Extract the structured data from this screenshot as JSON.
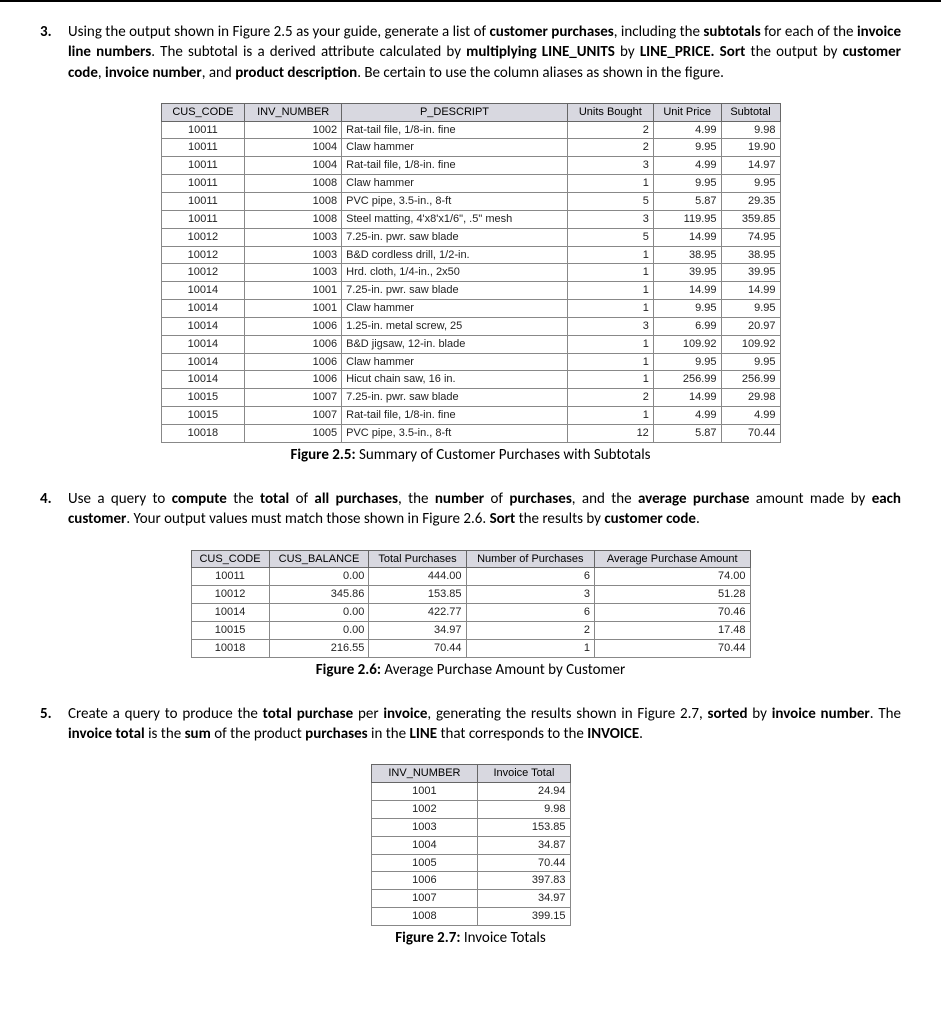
{
  "q3": {
    "num": "3.",
    "text_html": "Using the output shown in Figure 2.5 as your guide, generate a list of <b>customer purchases</b>, including the <b>subtotals</b> for each of the <b>invoice line numbers</b>. The subtotal is a derived attribute calculated by <b>multiplying LINE_UNITS</b> by <b>LINE_PRICE. Sort</b> the output by <b>customer code</b>, <b>invoice number</b>, and <b>product description</b>. Be certain to use the column aliases as shown in the figure."
  },
  "fig25": {
    "caption_bold": "Figure 2.5:",
    "caption_rest": " Summary of Customer Purchases with Subtotals",
    "headers": [
      "CUS_CODE",
      "INV_NUMBER",
      "P_DESCRIPT",
      "Units Bought",
      "Unit Price",
      "Subtotal"
    ],
    "rows": [
      [
        "10011",
        "1002",
        "Rat-tail file, 1/8-in. fine",
        "2",
        "4.99",
        "9.98"
      ],
      [
        "10011",
        "1004",
        "Claw hammer",
        "2",
        "9.95",
        "19.90"
      ],
      [
        "10011",
        "1004",
        "Rat-tail file, 1/8-in. fine",
        "3",
        "4.99",
        "14.97"
      ],
      [
        "10011",
        "1008",
        "Claw hammer",
        "1",
        "9.95",
        "9.95"
      ],
      [
        "10011",
        "1008",
        "PVC pipe, 3.5-in., 8-ft",
        "5",
        "5.87",
        "29.35"
      ],
      [
        "10011",
        "1008",
        "Steel matting, 4'x8'x1/6\", .5\" mesh",
        "3",
        "119.95",
        "359.85"
      ],
      [
        "10012",
        "1003",
        "7.25-in. pwr. saw blade",
        "5",
        "14.99",
        "74.95"
      ],
      [
        "10012",
        "1003",
        "B&D cordless drill, 1/2-in.",
        "1",
        "38.95",
        "38.95"
      ],
      [
        "10012",
        "1003",
        "Hrd. cloth, 1/4-in., 2x50",
        "1",
        "39.95",
        "39.95"
      ],
      [
        "10014",
        "1001",
        "7.25-in. pwr. saw blade",
        "1",
        "14.99",
        "14.99"
      ],
      [
        "10014",
        "1001",
        "Claw hammer",
        "1",
        "9.95",
        "9.95"
      ],
      [
        "10014",
        "1006",
        "1.25-in. metal screw, 25",
        "3",
        "6.99",
        "20.97"
      ],
      [
        "10014",
        "1006",
        "B&D jigsaw, 12-in. blade",
        "1",
        "109.92",
        "109.92"
      ],
      [
        "10014",
        "1006",
        "Claw hammer",
        "1",
        "9.95",
        "9.95"
      ],
      [
        "10014",
        "1006",
        "Hicut chain saw, 16 in.",
        "1",
        "256.99",
        "256.99"
      ],
      [
        "10015",
        "1007",
        "7.25-in. pwr. saw blade",
        "2",
        "14.99",
        "29.98"
      ],
      [
        "10015",
        "1007",
        "Rat-tail file, 1/8-in. fine",
        "1",
        "4.99",
        "4.99"
      ],
      [
        "10018",
        "1005",
        "PVC pipe, 3.5-in., 8-ft",
        "12",
        "5.87",
        "70.44"
      ]
    ]
  },
  "q4": {
    "num": "4.",
    "text_html": "Use a query to <b>compute</b> the <b>total</b> of <b>all purchases</b>, the <b>number</b> of <b>purchases</b>, and the <b>average purchase</b> amount made by <b>each customer</b>. Your output values must match those shown in Figure 2.6. <b>Sort</b> the results by <b>customer code</b>."
  },
  "fig26": {
    "caption_bold": "Figure 2.6:",
    "caption_rest": " Average Purchase Amount by Customer",
    "headers": [
      "CUS_CODE",
      "CUS_BALANCE",
      "Total Purchases",
      "Number of Purchases",
      "Average Purchase Amount"
    ],
    "rows": [
      [
        "10011",
        "0.00",
        "444.00",
        "6",
        "74.00"
      ],
      [
        "10012",
        "345.86",
        "153.85",
        "3",
        "51.28"
      ],
      [
        "10014",
        "0.00",
        "422.77",
        "6",
        "70.46"
      ],
      [
        "10015",
        "0.00",
        "34.97",
        "2",
        "17.48"
      ],
      [
        "10018",
        "216.55",
        "70.44",
        "1",
        "70.44"
      ]
    ]
  },
  "q5": {
    "num": "5.",
    "text_html": "Create a query to produce the <b>total purchase</b> per <b>invoice</b>, generating the results shown in Figure 2.7, <b>sorted</b> by <b>invoice number</b>. The <b>invoice total</b> is the <b>sum</b> of the product <b>purchases</b> in the <b>LINE</b> that corresponds to the <b>INVOICE</b>."
  },
  "fig27": {
    "caption_bold": "Figure 2.7:",
    "caption_rest": " Invoice Totals",
    "headers": [
      "INV_NUMBER",
      "Invoice Total"
    ],
    "rows": [
      [
        "1001",
        "24.94"
      ],
      [
        "1002",
        "9.98"
      ],
      [
        "1003",
        "153.85"
      ],
      [
        "1004",
        "34.87"
      ],
      [
        "1005",
        "70.44"
      ],
      [
        "1006",
        "397.83"
      ],
      [
        "1007",
        "34.97"
      ],
      [
        "1008",
        "399.15"
      ]
    ]
  }
}
